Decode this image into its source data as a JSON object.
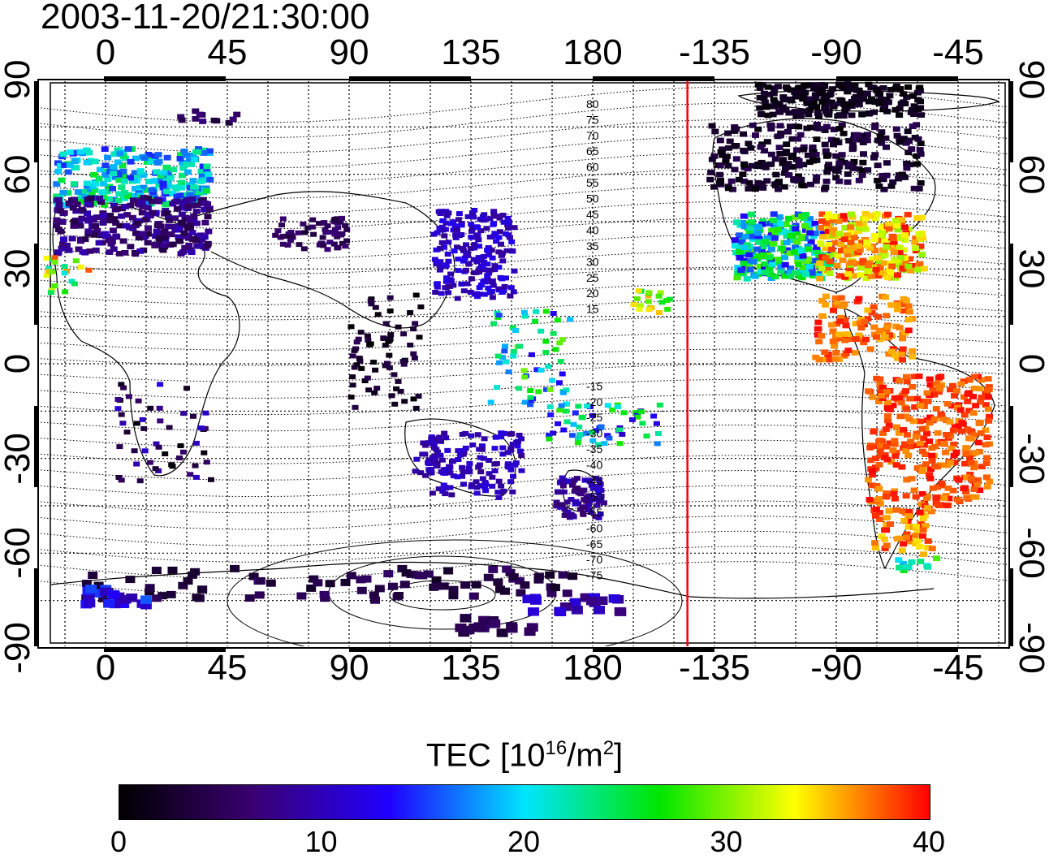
{
  "title": "2003-11-20/21:30:00",
  "x_ticks": [
    "0",
    "45",
    "90",
    "135",
    "180",
    "-135",
    "-90",
    "-45"
  ],
  "y_ticks": [
    "90",
    "60",
    "30",
    "0",
    "-30",
    "-60",
    "-90"
  ],
  "contour_labels": [
    "80",
    "75",
    "70",
    "65",
    "60",
    "55",
    "50",
    "45",
    "40",
    "35",
    "30",
    "25",
    "20",
    "15",
    "-15",
    "-20",
    "-25",
    "-30",
    "-35",
    "-40",
    "-45",
    "-50",
    "-55",
    "-60",
    "-65",
    "-70",
    "-75"
  ],
  "colorbar": {
    "label_main": "TEC  [10",
    "label_exp1": "16",
    "label_mid": "/m",
    "label_exp2": "2",
    "label_end": "]",
    "ticks": [
      "0",
      "10",
      "20",
      "30",
      "40"
    ],
    "range": [
      0,
      40
    ],
    "colors": [
      "#000000",
      "#3a0073",
      "#2000ff",
      "#00e5ff",
      "#00e600",
      "#ffff00",
      "#ff0000"
    ]
  },
  "marker_line_longitude": -145,
  "marker_line_color": "#ff0000"
}
